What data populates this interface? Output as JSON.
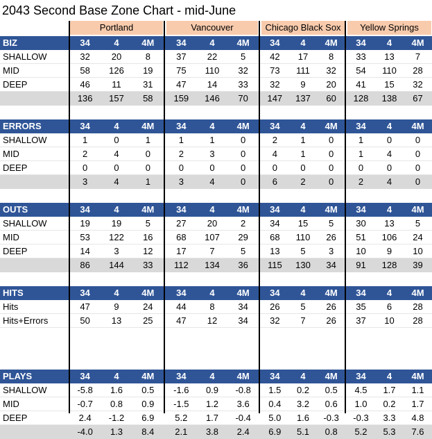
{
  "title": "2043 Second Base Zone Chart - mid-June",
  "teams": [
    "Portland",
    "Vancouver",
    "Chicago Black Sox",
    "Yellow Springs"
  ],
  "column_labels": [
    "34",
    "4",
    "4M"
  ],
  "sections": [
    {
      "name": "BIZ",
      "rows": [
        {
          "label": "SHALLOW",
          "values": [
            "32",
            "20",
            "8",
            "37",
            "22",
            "5",
            "42",
            "17",
            "8",
            "33",
            "13",
            "7"
          ]
        },
        {
          "label": "MID",
          "values": [
            "58",
            "126",
            "19",
            "75",
            "110",
            "32",
            "73",
            "111",
            "32",
            "54",
            "110",
            "28"
          ]
        },
        {
          "label": "DEEP",
          "values": [
            "46",
            "11",
            "31",
            "47",
            "14",
            "33",
            "32",
            "9",
            "20",
            "41",
            "15",
            "32"
          ]
        }
      ],
      "total": [
        "136",
        "157",
        "58",
        "159",
        "146",
        "70",
        "147",
        "137",
        "60",
        "128",
        "138",
        "67"
      ]
    },
    {
      "name": "ERRORS",
      "rows": [
        {
          "label": "SHALLOW",
          "values": [
            "1",
            "0",
            "1",
            "1",
            "1",
            "0",
            "2",
            "1",
            "0",
            "1",
            "0",
            "0"
          ]
        },
        {
          "label": "MID",
          "values": [
            "2",
            "4",
            "0",
            "2",
            "3",
            "0",
            "4",
            "1",
            "0",
            "1",
            "4",
            "0"
          ]
        },
        {
          "label": "DEEP",
          "values": [
            "0",
            "0",
            "0",
            "0",
            "0",
            "0",
            "0",
            "0",
            "0",
            "0",
            "0",
            "0"
          ]
        }
      ],
      "total": [
        "3",
        "4",
        "1",
        "3",
        "4",
        "0",
        "6",
        "2",
        "0",
        "2",
        "4",
        "0"
      ]
    },
    {
      "name": "OUTS",
      "rows": [
        {
          "label": "SHALLOW",
          "values": [
            "19",
            "19",
            "5",
            "27",
            "20",
            "2",
            "34",
            "15",
            "5",
            "30",
            "13",
            "5"
          ]
        },
        {
          "label": "MID",
          "values": [
            "53",
            "122",
            "16",
            "68",
            "107",
            "29",
            "68",
            "110",
            "26",
            "51",
            "106",
            "24"
          ]
        },
        {
          "label": "DEEP",
          "values": [
            "14",
            "3",
            "12",
            "17",
            "7",
            "5",
            "13",
            "5",
            "3",
            "10",
            "9",
            "10"
          ]
        }
      ],
      "total": [
        "86",
        "144",
        "33",
        "112",
        "134",
        "36",
        "115",
        "130",
        "34",
        "91",
        "128",
        "39"
      ]
    },
    {
      "name": "HITS",
      "rows": [
        {
          "label": "Hits",
          "values": [
            "47",
            "9",
            "24",
            "44",
            "8",
            "34",
            "26",
            "5",
            "26",
            "35",
            "6",
            "28"
          ]
        },
        {
          "label": "Hits+Errors",
          "values": [
            "50",
            "13",
            "25",
            "47",
            "12",
            "34",
            "32",
            "7",
            "26",
            "37",
            "10",
            "28"
          ]
        }
      ],
      "total": null
    },
    {
      "name": "PLAYS",
      "rows": [
        {
          "label": "SHALLOW",
          "values": [
            "-5.8",
            "1.6",
            "0.5",
            "-1.6",
            "0.9",
            "-0.8",
            "1.5",
            "0.2",
            "0.5",
            "4.5",
            "1.7",
            "1.1"
          ]
        },
        {
          "label": "MID",
          "values": [
            "-0.7",
            "0.8",
            "0.9",
            "-1.5",
            "1.2",
            "3.6",
            "0.4",
            "3.2",
            "0.6",
            "1.0",
            "0.2",
            "1.7"
          ]
        },
        {
          "label": "DEEP",
          "values": [
            "2.4",
            "-1.2",
            "6.9",
            "5.2",
            "1.7",
            "-0.4",
            "5.0",
            "1.6",
            "-0.3",
            "-0.3",
            "3.3",
            "4.8"
          ]
        }
      ],
      "total": [
        "-4.0",
        "1.3",
        "8.4",
        "2.1",
        "3.8",
        "2.4",
        "6.9",
        "5.1",
        "0.8",
        "5.2",
        "5.3",
        "7.6"
      ]
    }
  ],
  "colors": {
    "header_bg": "#2f5597",
    "header_text": "#ffffff",
    "team_bg": "#f8cbad",
    "total_bg": "#d9d9d9",
    "grid": "#e6e6e6"
  }
}
